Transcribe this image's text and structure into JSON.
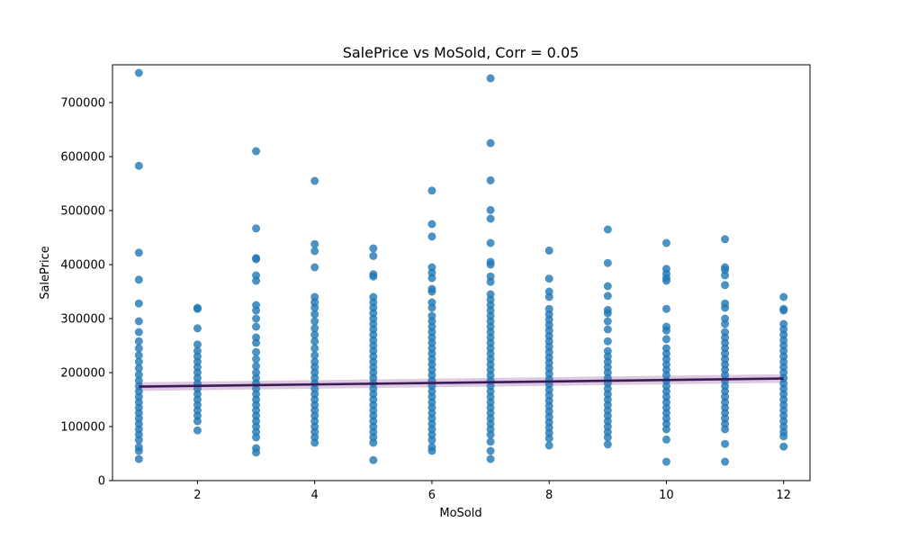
{
  "chart_data": {
    "type": "scatter",
    "title": "SalePrice vs MoSold, Corr = 0.05",
    "xlabel": "MoSold",
    "ylabel": "SalePrice",
    "xlim": [
      0.55,
      12.45
    ],
    "ylim": [
      0,
      770000
    ],
    "x_ticks": [
      2,
      4,
      6,
      8,
      10,
      12
    ],
    "y_ticks": [
      0,
      100000,
      200000,
      300000,
      400000,
      500000,
      600000,
      700000
    ],
    "grid": false,
    "colors": {
      "points": "#1f77b4",
      "regression_line": "#3b1a5a",
      "confidence_band": "#c8a7c8"
    },
    "regression": {
      "x": [
        1,
        12
      ],
      "y": [
        174000,
        189000
      ],
      "ci_halfwidth": [
        8000,
        8000
      ]
    },
    "points": [
      {
        "x": 1,
        "y": 755000
      },
      {
        "x": 1,
        "y": 583000
      },
      {
        "x": 1,
        "y": 422000
      },
      {
        "x": 1,
        "y": 372000
      },
      {
        "x": 1,
        "y": 328000
      },
      {
        "x": 1,
        "y": 295000
      },
      {
        "x": 1,
        "y": 275000
      },
      {
        "x": 1,
        "y": 258000
      },
      {
        "x": 1,
        "y": 245000
      },
      {
        "x": 1,
        "y": 232000
      },
      {
        "x": 1,
        "y": 220000
      },
      {
        "x": 1,
        "y": 208000
      },
      {
        "x": 1,
        "y": 196000
      },
      {
        "x": 1,
        "y": 185000
      },
      {
        "x": 1,
        "y": 175000
      },
      {
        "x": 1,
        "y": 165000
      },
      {
        "x": 1,
        "y": 155000
      },
      {
        "x": 1,
        "y": 145000
      },
      {
        "x": 1,
        "y": 135000
      },
      {
        "x": 1,
        "y": 125000
      },
      {
        "x": 1,
        "y": 115000
      },
      {
        "x": 1,
        "y": 105000
      },
      {
        "x": 1,
        "y": 95000
      },
      {
        "x": 1,
        "y": 85000
      },
      {
        "x": 1,
        "y": 75000
      },
      {
        "x": 1,
        "y": 62000
      },
      {
        "x": 1,
        "y": 55000
      },
      {
        "x": 1,
        "y": 40000
      },
      {
        "x": 2,
        "y": 320000
      },
      {
        "x": 2,
        "y": 318000
      },
      {
        "x": 2,
        "y": 282000
      },
      {
        "x": 2,
        "y": 252000
      },
      {
        "x": 2,
        "y": 240000
      },
      {
        "x": 2,
        "y": 230000
      },
      {
        "x": 2,
        "y": 220000
      },
      {
        "x": 2,
        "y": 210000
      },
      {
        "x": 2,
        "y": 200000
      },
      {
        "x": 2,
        "y": 190000
      },
      {
        "x": 2,
        "y": 180000
      },
      {
        "x": 2,
        "y": 170000
      },
      {
        "x": 2,
        "y": 160000
      },
      {
        "x": 2,
        "y": 150000
      },
      {
        "x": 2,
        "y": 140000
      },
      {
        "x": 2,
        "y": 130000
      },
      {
        "x": 2,
        "y": 120000
      },
      {
        "x": 2,
        "y": 110000
      },
      {
        "x": 2,
        "y": 93000
      },
      {
        "x": 3,
        "y": 610000
      },
      {
        "x": 3,
        "y": 467000
      },
      {
        "x": 3,
        "y": 412000
      },
      {
        "x": 3,
        "y": 410000
      },
      {
        "x": 3,
        "y": 380000
      },
      {
        "x": 3,
        "y": 370000
      },
      {
        "x": 3,
        "y": 325000
      },
      {
        "x": 3,
        "y": 315000
      },
      {
        "x": 3,
        "y": 300000
      },
      {
        "x": 3,
        "y": 285000
      },
      {
        "x": 3,
        "y": 265000
      },
      {
        "x": 3,
        "y": 255000
      },
      {
        "x": 3,
        "y": 238000
      },
      {
        "x": 3,
        "y": 225000
      },
      {
        "x": 3,
        "y": 212000
      },
      {
        "x": 3,
        "y": 200000
      },
      {
        "x": 3,
        "y": 190000
      },
      {
        "x": 3,
        "y": 180000
      },
      {
        "x": 3,
        "y": 170000
      },
      {
        "x": 3,
        "y": 160000
      },
      {
        "x": 3,
        "y": 150000
      },
      {
        "x": 3,
        "y": 140000
      },
      {
        "x": 3,
        "y": 130000
      },
      {
        "x": 3,
        "y": 120000
      },
      {
        "x": 3,
        "y": 110000
      },
      {
        "x": 3,
        "y": 100000
      },
      {
        "x": 3,
        "y": 90000
      },
      {
        "x": 3,
        "y": 80000
      },
      {
        "x": 3,
        "y": 60000
      },
      {
        "x": 3,
        "y": 52000
      },
      {
        "x": 4,
        "y": 555000
      },
      {
        "x": 4,
        "y": 438000
      },
      {
        "x": 4,
        "y": 425000
      },
      {
        "x": 4,
        "y": 395000
      },
      {
        "x": 4,
        "y": 340000
      },
      {
        "x": 4,
        "y": 330000
      },
      {
        "x": 4,
        "y": 320000
      },
      {
        "x": 4,
        "y": 308000
      },
      {
        "x": 4,
        "y": 295000
      },
      {
        "x": 4,
        "y": 282000
      },
      {
        "x": 4,
        "y": 270000
      },
      {
        "x": 4,
        "y": 258000
      },
      {
        "x": 4,
        "y": 245000
      },
      {
        "x": 4,
        "y": 232000
      },
      {
        "x": 4,
        "y": 220000
      },
      {
        "x": 4,
        "y": 210000
      },
      {
        "x": 4,
        "y": 200000
      },
      {
        "x": 4,
        "y": 190000
      },
      {
        "x": 4,
        "y": 180000
      },
      {
        "x": 4,
        "y": 170000
      },
      {
        "x": 4,
        "y": 160000
      },
      {
        "x": 4,
        "y": 150000
      },
      {
        "x": 4,
        "y": 140000
      },
      {
        "x": 4,
        "y": 130000
      },
      {
        "x": 4,
        "y": 120000
      },
      {
        "x": 4,
        "y": 110000
      },
      {
        "x": 4,
        "y": 100000
      },
      {
        "x": 4,
        "y": 90000
      },
      {
        "x": 4,
        "y": 80000
      },
      {
        "x": 4,
        "y": 70000
      },
      {
        "x": 5,
        "y": 430000
      },
      {
        "x": 5,
        "y": 416000
      },
      {
        "x": 5,
        "y": 382000
      },
      {
        "x": 5,
        "y": 378000
      },
      {
        "x": 5,
        "y": 340000
      },
      {
        "x": 5,
        "y": 330000
      },
      {
        "x": 5,
        "y": 320000
      },
      {
        "x": 5,
        "y": 310000
      },
      {
        "x": 5,
        "y": 300000
      },
      {
        "x": 5,
        "y": 290000
      },
      {
        "x": 5,
        "y": 280000
      },
      {
        "x": 5,
        "y": 270000
      },
      {
        "x": 5,
        "y": 260000
      },
      {
        "x": 5,
        "y": 250000
      },
      {
        "x": 5,
        "y": 240000
      },
      {
        "x": 5,
        "y": 230000
      },
      {
        "x": 5,
        "y": 220000
      },
      {
        "x": 5,
        "y": 210000
      },
      {
        "x": 5,
        "y": 200000
      },
      {
        "x": 5,
        "y": 190000
      },
      {
        "x": 5,
        "y": 180000
      },
      {
        "x": 5,
        "y": 170000
      },
      {
        "x": 5,
        "y": 160000
      },
      {
        "x": 5,
        "y": 150000
      },
      {
        "x": 5,
        "y": 140000
      },
      {
        "x": 5,
        "y": 130000
      },
      {
        "x": 5,
        "y": 120000
      },
      {
        "x": 5,
        "y": 110000
      },
      {
        "x": 5,
        "y": 100000
      },
      {
        "x": 5,
        "y": 90000
      },
      {
        "x": 5,
        "y": 80000
      },
      {
        "x": 5,
        "y": 70000
      },
      {
        "x": 5,
        "y": 38000
      },
      {
        "x": 6,
        "y": 537000
      },
      {
        "x": 6,
        "y": 475000
      },
      {
        "x": 6,
        "y": 452000
      },
      {
        "x": 6,
        "y": 395000
      },
      {
        "x": 6,
        "y": 385000
      },
      {
        "x": 6,
        "y": 375000
      },
      {
        "x": 6,
        "y": 355000
      },
      {
        "x": 6,
        "y": 350000
      },
      {
        "x": 6,
        "y": 330000
      },
      {
        "x": 6,
        "y": 320000
      },
      {
        "x": 6,
        "y": 305000
      },
      {
        "x": 6,
        "y": 295000
      },
      {
        "x": 6,
        "y": 285000
      },
      {
        "x": 6,
        "y": 275000
      },
      {
        "x": 6,
        "y": 265000
      },
      {
        "x": 6,
        "y": 255000
      },
      {
        "x": 6,
        "y": 245000
      },
      {
        "x": 6,
        "y": 235000
      },
      {
        "x": 6,
        "y": 225000
      },
      {
        "x": 6,
        "y": 215000
      },
      {
        "x": 6,
        "y": 205000
      },
      {
        "x": 6,
        "y": 195000
      },
      {
        "x": 6,
        "y": 185000
      },
      {
        "x": 6,
        "y": 175000
      },
      {
        "x": 6,
        "y": 165000
      },
      {
        "x": 6,
        "y": 155000
      },
      {
        "x": 6,
        "y": 145000
      },
      {
        "x": 6,
        "y": 135000
      },
      {
        "x": 6,
        "y": 125000
      },
      {
        "x": 6,
        "y": 115000
      },
      {
        "x": 6,
        "y": 105000
      },
      {
        "x": 6,
        "y": 95000
      },
      {
        "x": 6,
        "y": 85000
      },
      {
        "x": 6,
        "y": 75000
      },
      {
        "x": 6,
        "y": 62000
      },
      {
        "x": 6,
        "y": 55000
      },
      {
        "x": 7,
        "y": 745000
      },
      {
        "x": 7,
        "y": 625000
      },
      {
        "x": 7,
        "y": 556000
      },
      {
        "x": 7,
        "y": 501000
      },
      {
        "x": 7,
        "y": 485000
      },
      {
        "x": 7,
        "y": 440000
      },
      {
        "x": 7,
        "y": 405000
      },
      {
        "x": 7,
        "y": 400000
      },
      {
        "x": 7,
        "y": 378000
      },
      {
        "x": 7,
        "y": 368000
      },
      {
        "x": 7,
        "y": 345000
      },
      {
        "x": 7,
        "y": 335000
      },
      {
        "x": 7,
        "y": 325000
      },
      {
        "x": 7,
        "y": 315000
      },
      {
        "x": 7,
        "y": 305000
      },
      {
        "x": 7,
        "y": 295000
      },
      {
        "x": 7,
        "y": 285000
      },
      {
        "x": 7,
        "y": 275000
      },
      {
        "x": 7,
        "y": 265000
      },
      {
        "x": 7,
        "y": 255000
      },
      {
        "x": 7,
        "y": 245000
      },
      {
        "x": 7,
        "y": 235000
      },
      {
        "x": 7,
        "y": 225000
      },
      {
        "x": 7,
        "y": 215000
      },
      {
        "x": 7,
        "y": 205000
      },
      {
        "x": 7,
        "y": 195000
      },
      {
        "x": 7,
        "y": 185000
      },
      {
        "x": 7,
        "y": 175000
      },
      {
        "x": 7,
        "y": 165000
      },
      {
        "x": 7,
        "y": 155000
      },
      {
        "x": 7,
        "y": 145000
      },
      {
        "x": 7,
        "y": 135000
      },
      {
        "x": 7,
        "y": 125000
      },
      {
        "x": 7,
        "y": 115000
      },
      {
        "x": 7,
        "y": 105000
      },
      {
        "x": 7,
        "y": 95000
      },
      {
        "x": 7,
        "y": 85000
      },
      {
        "x": 7,
        "y": 72000
      },
      {
        "x": 7,
        "y": 55000
      },
      {
        "x": 7,
        "y": 40000
      },
      {
        "x": 8,
        "y": 426000
      },
      {
        "x": 8,
        "y": 374000
      },
      {
        "x": 8,
        "y": 350000
      },
      {
        "x": 8,
        "y": 340000
      },
      {
        "x": 8,
        "y": 318000
      },
      {
        "x": 8,
        "y": 308000
      },
      {
        "x": 8,
        "y": 298000
      },
      {
        "x": 8,
        "y": 288000
      },
      {
        "x": 8,
        "y": 278000
      },
      {
        "x": 8,
        "y": 268000
      },
      {
        "x": 8,
        "y": 258000
      },
      {
        "x": 8,
        "y": 248000
      },
      {
        "x": 8,
        "y": 238000
      },
      {
        "x": 8,
        "y": 228000
      },
      {
        "x": 8,
        "y": 218000
      },
      {
        "x": 8,
        "y": 208000
      },
      {
        "x": 8,
        "y": 198000
      },
      {
        "x": 8,
        "y": 188000
      },
      {
        "x": 8,
        "y": 178000
      },
      {
        "x": 8,
        "y": 168000
      },
      {
        "x": 8,
        "y": 158000
      },
      {
        "x": 8,
        "y": 148000
      },
      {
        "x": 8,
        "y": 138000
      },
      {
        "x": 8,
        "y": 128000
      },
      {
        "x": 8,
        "y": 118000
      },
      {
        "x": 8,
        "y": 108000
      },
      {
        "x": 8,
        "y": 98000
      },
      {
        "x": 8,
        "y": 88000
      },
      {
        "x": 8,
        "y": 78000
      },
      {
        "x": 8,
        "y": 65000
      },
      {
        "x": 9,
        "y": 465000
      },
      {
        "x": 9,
        "y": 403000
      },
      {
        "x": 9,
        "y": 360000
      },
      {
        "x": 9,
        "y": 342000
      },
      {
        "x": 9,
        "y": 316000
      },
      {
        "x": 9,
        "y": 310000
      },
      {
        "x": 9,
        "y": 295000
      },
      {
        "x": 9,
        "y": 280000
      },
      {
        "x": 9,
        "y": 258000
      },
      {
        "x": 9,
        "y": 240000
      },
      {
        "x": 9,
        "y": 230000
      },
      {
        "x": 9,
        "y": 220000
      },
      {
        "x": 9,
        "y": 210000
      },
      {
        "x": 9,
        "y": 200000
      },
      {
        "x": 9,
        "y": 190000
      },
      {
        "x": 9,
        "y": 180000
      },
      {
        "x": 9,
        "y": 170000
      },
      {
        "x": 9,
        "y": 160000
      },
      {
        "x": 9,
        "y": 150000
      },
      {
        "x": 9,
        "y": 140000
      },
      {
        "x": 9,
        "y": 130000
      },
      {
        "x": 9,
        "y": 120000
      },
      {
        "x": 9,
        "y": 110000
      },
      {
        "x": 9,
        "y": 100000
      },
      {
        "x": 9,
        "y": 90000
      },
      {
        "x": 9,
        "y": 80000
      },
      {
        "x": 9,
        "y": 67000
      },
      {
        "x": 10,
        "y": 440000
      },
      {
        "x": 10,
        "y": 392000
      },
      {
        "x": 10,
        "y": 383000
      },
      {
        "x": 10,
        "y": 375000
      },
      {
        "x": 10,
        "y": 370000
      },
      {
        "x": 10,
        "y": 318000
      },
      {
        "x": 10,
        "y": 285000
      },
      {
        "x": 10,
        "y": 278000
      },
      {
        "x": 10,
        "y": 262000
      },
      {
        "x": 10,
        "y": 245000
      },
      {
        "x": 10,
        "y": 235000
      },
      {
        "x": 10,
        "y": 225000
      },
      {
        "x": 10,
        "y": 215000
      },
      {
        "x": 10,
        "y": 205000
      },
      {
        "x": 10,
        "y": 195000
      },
      {
        "x": 10,
        "y": 185000
      },
      {
        "x": 10,
        "y": 175000
      },
      {
        "x": 10,
        "y": 165000
      },
      {
        "x": 10,
        "y": 155000
      },
      {
        "x": 10,
        "y": 145000
      },
      {
        "x": 10,
        "y": 135000
      },
      {
        "x": 10,
        "y": 125000
      },
      {
        "x": 10,
        "y": 115000
      },
      {
        "x": 10,
        "y": 105000
      },
      {
        "x": 10,
        "y": 95000
      },
      {
        "x": 10,
        "y": 76000
      },
      {
        "x": 10,
        "y": 35000
      },
      {
        "x": 11,
        "y": 447000
      },
      {
        "x": 11,
        "y": 395000
      },
      {
        "x": 11,
        "y": 390000
      },
      {
        "x": 11,
        "y": 380000
      },
      {
        "x": 11,
        "y": 362000
      },
      {
        "x": 11,
        "y": 328000
      },
      {
        "x": 11,
        "y": 320000
      },
      {
        "x": 11,
        "y": 300000
      },
      {
        "x": 11,
        "y": 290000
      },
      {
        "x": 11,
        "y": 275000
      },
      {
        "x": 11,
        "y": 265000
      },
      {
        "x": 11,
        "y": 255000
      },
      {
        "x": 11,
        "y": 245000
      },
      {
        "x": 11,
        "y": 235000
      },
      {
        "x": 11,
        "y": 225000
      },
      {
        "x": 11,
        "y": 215000
      },
      {
        "x": 11,
        "y": 205000
      },
      {
        "x": 11,
        "y": 195000
      },
      {
        "x": 11,
        "y": 185000
      },
      {
        "x": 11,
        "y": 175000
      },
      {
        "x": 11,
        "y": 165000
      },
      {
        "x": 11,
        "y": 155000
      },
      {
        "x": 11,
        "y": 145000
      },
      {
        "x": 11,
        "y": 135000
      },
      {
        "x": 11,
        "y": 125000
      },
      {
        "x": 11,
        "y": 115000
      },
      {
        "x": 11,
        "y": 105000
      },
      {
        "x": 11,
        "y": 95000
      },
      {
        "x": 11,
        "y": 68000
      },
      {
        "x": 11,
        "y": 35000
      },
      {
        "x": 12,
        "y": 340000
      },
      {
        "x": 12,
        "y": 318000
      },
      {
        "x": 12,
        "y": 315000
      },
      {
        "x": 12,
        "y": 290000
      },
      {
        "x": 12,
        "y": 280000
      },
      {
        "x": 12,
        "y": 270000
      },
      {
        "x": 12,
        "y": 260000
      },
      {
        "x": 12,
        "y": 250000
      },
      {
        "x": 12,
        "y": 240000
      },
      {
        "x": 12,
        "y": 230000
      },
      {
        "x": 12,
        "y": 220000
      },
      {
        "x": 12,
        "y": 210000
      },
      {
        "x": 12,
        "y": 200000
      },
      {
        "x": 12,
        "y": 190000
      },
      {
        "x": 12,
        "y": 180000
      },
      {
        "x": 12,
        "y": 170000
      },
      {
        "x": 12,
        "y": 160000
      },
      {
        "x": 12,
        "y": 150000
      },
      {
        "x": 12,
        "y": 140000
      },
      {
        "x": 12,
        "y": 130000
      },
      {
        "x": 12,
        "y": 120000
      },
      {
        "x": 12,
        "y": 110000
      },
      {
        "x": 12,
        "y": 100000
      },
      {
        "x": 12,
        "y": 90000
      },
      {
        "x": 12,
        "y": 82000
      },
      {
        "x": 12,
        "y": 63000
      }
    ]
  }
}
